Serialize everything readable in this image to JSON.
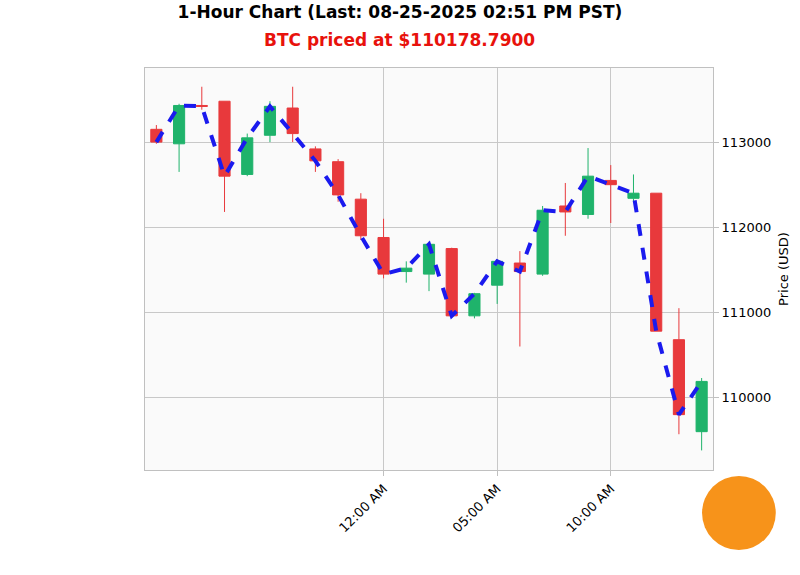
{
  "chart_data": {
    "type": "candlestick",
    "title": "1-Hour Chart (Last: 08-25-2025 02:51 PM PST)",
    "subtitle": "BTC priced at $110178.7900",
    "y_label": "Price (USD)",
    "categories": [
      null,
      null,
      null,
      null,
      null,
      null,
      null,
      null,
      null,
      null,
      "12:00 AM",
      null,
      null,
      null,
      null,
      "05:00 AM",
      null,
      null,
      null,
      null,
      "10:00 AM",
      null,
      null,
      null,
      null
    ],
    "series": [
      {
        "type": "candlestick",
        "color": {
          "increasing": "#1fb36b",
          "decreasing": "#e8393c"
        },
        "open": [
          113150,
          112980,
          113430,
          113480,
          112620,
          113080,
          113400,
          112920,
          112770,
          112330,
          111880,
          111480,
          111450,
          111750,
          110960,
          111320,
          111580,
          111450,
          112250,
          112150,
          112550,
          112340,
          112400,
          110680,
          109600
        ],
        "high": [
          113200,
          113450,
          113650,
          113480,
          113100,
          113480,
          113650,
          112950,
          112800,
          112400,
          112100,
          111600,
          111830,
          111760,
          111230,
          111620,
          111720,
          112250,
          112520,
          112930,
          112730,
          112620,
          112400,
          111050,
          110230
        ],
        "low": [
          112980,
          112650,
          113380,
          112180,
          112600,
          113000,
          113000,
          112650,
          112300,
          111850,
          111400,
          111350,
          111250,
          110940,
          110930,
          111100,
          110600,
          111430,
          111900,
          112100,
          112050,
          112300,
          110780,
          109570,
          109380
        ],
        "close": [
          113000,
          113430,
          113420,
          112600,
          113050,
          113420,
          113100,
          112780,
          112380,
          111900,
          111450,
          111520,
          111800,
          110960,
          111220,
          111600,
          111480,
          112200,
          112180,
          112600,
          112500,
          112400,
          110780,
          109800,
          110190
        ]
      },
      {
        "type": "line",
        "color": "#1a1aee",
        "line_style": "dashed",
        "values": [
          113000,
          113430,
          113420,
          112600,
          113050,
          113420,
          113100,
          112780,
          112380,
          111900,
          111450,
          111520,
          111800,
          110960,
          111220,
          111600,
          111480,
          112200,
          112180,
          112600,
          112500,
          112400,
          110780,
          109800,
          110190
        ]
      }
    ],
    "ylim": [
      109150,
      113870
    ],
    "yticks": [
      110000,
      111000,
      112000,
      113000
    ],
    "grid": true,
    "legend": false
  }
}
